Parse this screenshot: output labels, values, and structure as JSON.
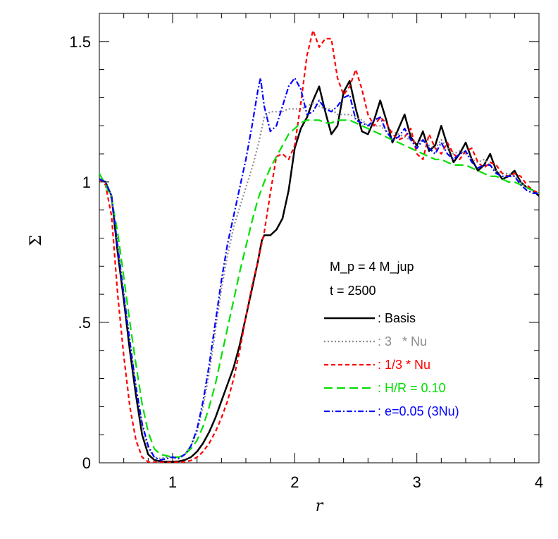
{
  "chart_data": {
    "type": "line",
    "xlabel": "r",
    "ylabel": "Σ",
    "xlim": [
      0.4,
      4.0
    ],
    "ylim": [
      0.0,
      1.6
    ],
    "x_ticks": [
      {
        "value": 1,
        "label": "1"
      },
      {
        "value": 2,
        "label": "2"
      },
      {
        "value": 3,
        "label": "3"
      },
      {
        "value": 4,
        "label": "4"
      }
    ],
    "y_ticks": [
      {
        "value": 0,
        "label": "0"
      },
      {
        "value": 0.5,
        "label": ".5"
      },
      {
        "value": 1.0,
        "label": "1"
      },
      {
        "value": 1.5,
        "label": "1.5"
      }
    ],
    "annotations": [
      "M_p = 4 M_jup",
      "t = 2500"
    ],
    "series": [
      {
        "name": ": Basis",
        "color": "#000000",
        "dash": "solid",
        "x": [
          0.4,
          0.45,
          0.5,
          0.55,
          0.6,
          0.65,
          0.7,
          0.75,
          0.8,
          0.85,
          0.9,
          0.95,
          1.0,
          1.05,
          1.1,
          1.15,
          1.2,
          1.25,
          1.3,
          1.35,
          1.4,
          1.45,
          1.5,
          1.55,
          1.6,
          1.65,
          1.7,
          1.73,
          1.75,
          1.8,
          1.85,
          1.9,
          1.95,
          2.0,
          2.05,
          2.1,
          2.15,
          2.2,
          2.25,
          2.3,
          2.35,
          2.4,
          2.45,
          2.5,
          2.55,
          2.6,
          2.65,
          2.7,
          2.75,
          2.8,
          2.85,
          2.9,
          2.95,
          3.0,
          3.05,
          3.1,
          3.15,
          3.2,
          3.25,
          3.3,
          3.35,
          3.4,
          3.45,
          3.5,
          3.55,
          3.6,
          3.65,
          3.7,
          3.75,
          3.8,
          3.85,
          3.9,
          3.95,
          4.0
        ],
        "y": [
          1.01,
          1.0,
          0.95,
          0.75,
          0.58,
          0.4,
          0.24,
          0.1,
          0.03,
          0.01,
          0.005,
          0.004,
          0.004,
          0.005,
          0.01,
          0.02,
          0.04,
          0.07,
          0.11,
          0.16,
          0.22,
          0.28,
          0.34,
          0.42,
          0.52,
          0.62,
          0.72,
          0.79,
          0.81,
          0.81,
          0.83,
          0.87,
          0.97,
          1.12,
          1.19,
          1.23,
          1.29,
          1.34,
          1.25,
          1.17,
          1.2,
          1.32,
          1.36,
          1.26,
          1.18,
          1.17,
          1.22,
          1.29,
          1.22,
          1.14,
          1.19,
          1.24,
          1.16,
          1.13,
          1.18,
          1.11,
          1.13,
          1.2,
          1.13,
          1.07,
          1.1,
          1.14,
          1.08,
          1.04,
          1.06,
          1.1,
          1.04,
          1.01,
          1.02,
          1.04,
          1.0,
          0.98,
          0.97,
          0.95
        ]
      },
      {
        "name": ": 3   * Nu",
        "color": "#8c8c8c",
        "dash": "dotted",
        "x": [
          0.4,
          0.45,
          0.5,
          0.55,
          0.6,
          0.65,
          0.7,
          0.75,
          0.8,
          0.85,
          0.9,
          0.95,
          1.0,
          1.05,
          1.1,
          1.15,
          1.2,
          1.25,
          1.3,
          1.35,
          1.4,
          1.45,
          1.5,
          1.55,
          1.6,
          1.65,
          1.7,
          1.75,
          1.8,
          1.85,
          1.9,
          1.95,
          2.0,
          2.05,
          2.1,
          2.15,
          2.2,
          2.25,
          2.3,
          2.35,
          2.4,
          2.45,
          2.5,
          2.55,
          2.6,
          2.65,
          2.7,
          2.75,
          2.8,
          2.85,
          2.9,
          2.95,
          3.0,
          3.05,
          3.1,
          3.15,
          3.2,
          3.25,
          3.3,
          3.35,
          3.4,
          3.45,
          3.5,
          3.55,
          3.6,
          3.65,
          3.7,
          3.75,
          3.8,
          3.85,
          3.9,
          3.95,
          4.0
        ],
        "y": [
          1.01,
          1.0,
          0.95,
          0.78,
          0.6,
          0.44,
          0.27,
          0.13,
          0.05,
          0.02,
          0.015,
          0.02,
          0.02,
          0.02,
          0.03,
          0.06,
          0.11,
          0.2,
          0.32,
          0.47,
          0.62,
          0.74,
          0.84,
          0.91,
          0.98,
          1.05,
          1.13,
          1.23,
          1.25,
          1.25,
          1.25,
          1.26,
          1.26,
          1.26,
          1.27,
          1.28,
          1.27,
          1.26,
          1.26,
          1.24,
          1.24,
          1.24,
          1.23,
          1.22,
          1.2,
          1.2,
          1.2,
          1.18,
          1.18,
          1.17,
          1.16,
          1.15,
          1.14,
          1.15,
          1.13,
          1.12,
          1.15,
          1.12,
          1.1,
          1.11,
          1.1,
          1.08,
          1.07,
          1.08,
          1.06,
          1.04,
          1.03,
          1.03,
          1.02,
          1.0,
          0.98,
          0.97,
          0.96
        ]
      },
      {
        "name": ": 1/3 * Nu",
        "color": "#ff0000",
        "dash": "dashed",
        "x": [
          0.4,
          0.45,
          0.5,
          0.55,
          0.6,
          0.65,
          0.7,
          0.75,
          0.8,
          0.85,
          0.9,
          0.95,
          1.0,
          1.05,
          1.1,
          1.15,
          1.2,
          1.25,
          1.3,
          1.35,
          1.4,
          1.45,
          1.5,
          1.55,
          1.6,
          1.65,
          1.7,
          1.75,
          1.8,
          1.85,
          1.9,
          1.95,
          2.0,
          2.05,
          2.1,
          2.15,
          2.2,
          2.25,
          2.3,
          2.35,
          2.4,
          2.45,
          2.5,
          2.55,
          2.6,
          2.65,
          2.7,
          2.75,
          2.8,
          2.85,
          2.9,
          2.95,
          3.0,
          3.05,
          3.1,
          3.15,
          3.2,
          3.25,
          3.3,
          3.35,
          3.4,
          3.45,
          3.5,
          3.55,
          3.6,
          3.65,
          3.7,
          3.75,
          3.8,
          3.85,
          3.9,
          3.95,
          4.0
        ],
        "y": [
          1.01,
          0.99,
          0.88,
          0.6,
          0.38,
          0.2,
          0.08,
          0.02,
          0.003,
          0.002,
          0.002,
          0.002,
          0.002,
          0.002,
          0.003,
          0.008,
          0.02,
          0.04,
          0.07,
          0.11,
          0.16,
          0.22,
          0.3,
          0.4,
          0.52,
          0.63,
          0.72,
          0.82,
          0.96,
          1.09,
          1.1,
          1.08,
          1.13,
          1.28,
          1.45,
          1.54,
          1.48,
          1.51,
          1.51,
          1.37,
          1.31,
          1.34,
          1.4,
          1.33,
          1.24,
          1.2,
          1.23,
          1.21,
          1.17,
          1.15,
          1.16,
          1.19,
          1.1,
          1.08,
          1.17,
          1.12,
          1.1,
          1.14,
          1.1,
          1.08,
          1.11,
          1.12,
          1.07,
          1.05,
          1.07,
          1.06,
          1.03,
          1.02,
          1.03,
          1.02,
          0.99,
          0.97,
          0.96
        ]
      },
      {
        "name": ": H/R = 0.10",
        "color": "#00e000",
        "dash": "longdash",
        "x": [
          0.4,
          0.45,
          0.5,
          0.55,
          0.6,
          0.65,
          0.7,
          0.75,
          0.8,
          0.85,
          0.9,
          0.95,
          1.0,
          1.05,
          1.1,
          1.15,
          1.2,
          1.25,
          1.3,
          1.35,
          1.4,
          1.45,
          1.5,
          1.55,
          1.6,
          1.65,
          1.7,
          1.75,
          1.8,
          1.85,
          1.9,
          1.95,
          2.0,
          2.05,
          2.1,
          2.15,
          2.2,
          2.25,
          2.3,
          2.35,
          2.4,
          2.45,
          2.5,
          2.55,
          2.6,
          2.65,
          2.7,
          2.75,
          2.8,
          2.85,
          2.9,
          2.95,
          3.0,
          3.05,
          3.1,
          3.15,
          3.2,
          3.25,
          3.3,
          3.35,
          3.4,
          3.45,
          3.5,
          3.55,
          3.6,
          3.65,
          3.7,
          3.75,
          3.8,
          3.85,
          3.9,
          3.95,
          4.0
        ],
        "y": [
          1.03,
          0.99,
          0.94,
          0.82,
          0.66,
          0.5,
          0.35,
          0.21,
          0.11,
          0.05,
          0.03,
          0.025,
          0.02,
          0.02,
          0.03,
          0.05,
          0.08,
          0.13,
          0.2,
          0.28,
          0.38,
          0.48,
          0.58,
          0.68,
          0.77,
          0.86,
          0.94,
          1.0,
          1.05,
          1.09,
          1.13,
          1.17,
          1.19,
          1.21,
          1.22,
          1.22,
          1.22,
          1.21,
          1.21,
          1.22,
          1.22,
          1.22,
          1.21,
          1.2,
          1.19,
          1.18,
          1.17,
          1.16,
          1.15,
          1.14,
          1.13,
          1.12,
          1.11,
          1.1,
          1.09,
          1.08,
          1.08,
          1.07,
          1.06,
          1.06,
          1.06,
          1.05,
          1.04,
          1.03,
          1.02,
          1.02,
          1.01,
          1.0,
          1.0,
          0.99,
          0.98,
          0.97,
          0.96
        ]
      },
      {
        "name": ": e=0.05 (3Nu)",
        "color": "#0000ff",
        "dash": "dashdot",
        "x": [
          0.4,
          0.45,
          0.5,
          0.55,
          0.6,
          0.65,
          0.7,
          0.75,
          0.8,
          0.85,
          0.9,
          0.95,
          1.0,
          1.05,
          1.1,
          1.15,
          1.2,
          1.25,
          1.3,
          1.35,
          1.4,
          1.45,
          1.5,
          1.55,
          1.6,
          1.65,
          1.7,
          1.72,
          1.75,
          1.8,
          1.85,
          1.9,
          1.95,
          2.0,
          2.05,
          2.1,
          2.15,
          2.2,
          2.25,
          2.3,
          2.35,
          2.4,
          2.45,
          2.5,
          2.55,
          2.6,
          2.65,
          2.7,
          2.75,
          2.8,
          2.85,
          2.9,
          2.95,
          3.0,
          3.05,
          3.1,
          3.15,
          3.2,
          3.25,
          3.3,
          3.35,
          3.4,
          3.45,
          3.5,
          3.55,
          3.6,
          3.65,
          3.7,
          3.75,
          3.8,
          3.85,
          3.9,
          3.95,
          4.0
        ],
        "y": [
          1.01,
          1.0,
          0.95,
          0.77,
          0.6,
          0.43,
          0.27,
          0.14,
          0.06,
          0.02,
          0.01,
          0.015,
          0.02,
          0.015,
          0.03,
          0.06,
          0.12,
          0.22,
          0.35,
          0.5,
          0.65,
          0.78,
          0.88,
          0.98,
          1.08,
          1.2,
          1.33,
          1.37,
          1.27,
          1.18,
          1.2,
          1.27,
          1.34,
          1.37,
          1.33,
          1.24,
          1.25,
          1.29,
          1.26,
          1.25,
          1.27,
          1.3,
          1.31,
          1.22,
          1.21,
          1.2,
          1.22,
          1.23,
          1.18,
          1.15,
          1.16,
          1.19,
          1.15,
          1.12,
          1.15,
          1.12,
          1.1,
          1.14,
          1.1,
          1.08,
          1.1,
          1.11,
          1.07,
          1.05,
          1.06,
          1.06,
          1.03,
          1.02,
          1.02,
          1.02,
          0.99,
          0.97,
          0.96,
          0.96
        ]
      }
    ]
  }
}
